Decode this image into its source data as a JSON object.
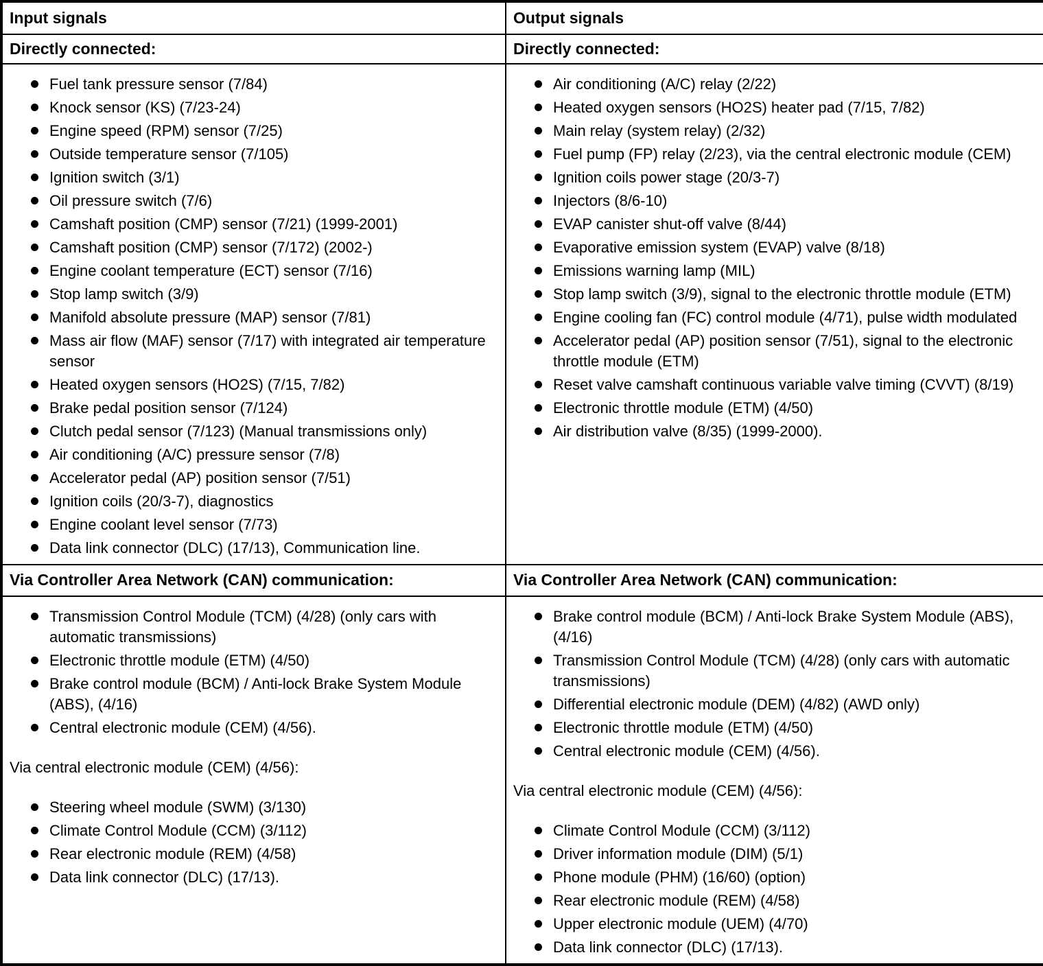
{
  "table": {
    "left": {
      "header": "Input signals",
      "direct_title": "Directly connected:",
      "direct_items": [
        "Fuel tank pressure sensor (7/84)",
        "Knock sensor (KS) (7/23-24)",
        "Engine speed (RPM) sensor (7/25)",
        "Outside temperature sensor (7/105)",
        "Ignition switch (3/1)",
        "Oil pressure switch (7/6)",
        "Camshaft position (CMP) sensor (7/21) (1999-2001)",
        "Camshaft position (CMP) sensor (7/172) (2002-)",
        "Engine coolant temperature (ECT) sensor (7/16)",
        "Stop lamp switch (3/9)",
        "Manifold absolute pressure (MAP) sensor (7/81)",
        "Mass air flow (MAF) sensor (7/17) with integrated air temperature sensor",
        "Heated oxygen sensors (HO2S) (7/15, 7/82)",
        "Brake pedal position sensor (7/124)",
        "Clutch pedal sensor (7/123) (Manual transmissions only)",
        "Air conditioning (A/C) pressure sensor (7/8)",
        "Accelerator pedal (AP) position sensor (7/51)",
        "Ignition coils (20/3-7), diagnostics",
        "Engine coolant level sensor (7/73)",
        "Data link connector (DLC) (17/13), Communication line."
      ],
      "can_title": "Via Controller Area Network (CAN) communication:",
      "can_items": [
        "Transmission Control Module (TCM) (4/28) (only cars with automatic transmissions)",
        "Electronic throttle module (ETM) (4/50)",
        "Brake control module (BCM) / Anti-lock Brake System Module (ABS), (4/16)",
        "Central electronic module (CEM) (4/56)."
      ],
      "cem_intro": "Via central electronic module (CEM) (4/56):",
      "cem_items": [
        "Steering wheel module (SWM) (3/130)",
        "Climate Control Module (CCM) (3/112)",
        "Rear electronic module (REM) (4/58)",
        "Data link connector (DLC) (17/13)."
      ]
    },
    "right": {
      "header": "Output signals",
      "direct_title": "Directly connected:",
      "direct_items": [
        "Air conditioning (A/C) relay (2/22)",
        "Heated oxygen sensors (HO2S) heater pad (7/15, 7/82)",
        "Main relay (system relay) (2/32)",
        "Fuel pump (FP) relay (2/23), via the central electronic module (CEM)",
        "Ignition coils power stage (20/3-7)",
        "Injectors (8/6-10)",
        "EVAP canister shut-off valve (8/44)",
        "Evaporative emission system (EVAP) valve (8/18)",
        "Emissions warning lamp (MIL)",
        "Stop lamp switch (3/9), signal to the electronic throttle module (ETM)",
        "Engine cooling fan (FC) control module (4/71), pulse width modulated",
        "Accelerator pedal (AP) position sensor (7/51), signal to the electronic throttle module (ETM)",
        "Reset valve camshaft continuous variable valve timing (CVVT) (8/19)",
        "Electronic throttle module (ETM) (4/50)",
        "Air distribution valve (8/35) (1999-2000)."
      ],
      "can_title": "Via Controller Area Network (CAN) communication:",
      "can_items": [
        "Brake control module (BCM) / Anti-lock Brake System Module (ABS), (4/16)",
        "Transmission Control Module (TCM) (4/28) (only cars with automatic transmissions)",
        "Differential electronic module (DEM) (4/82) (AWD only)",
        "Electronic throttle module (ETM) (4/50)",
        "Central electronic module (CEM) (4/56)."
      ],
      "cem_intro": "Via central electronic module (CEM) (4/56):",
      "cem_items": [
        "Climate Control Module (CCM) (3/112)",
        "Driver information module (DIM) (5/1)",
        "Phone module (PHM) (16/60) (option)",
        "Rear electronic module (REM) (4/58)",
        "Upper electronic module (UEM) (4/70)",
        "Data link connector (DLC) (17/13)."
      ]
    }
  }
}
